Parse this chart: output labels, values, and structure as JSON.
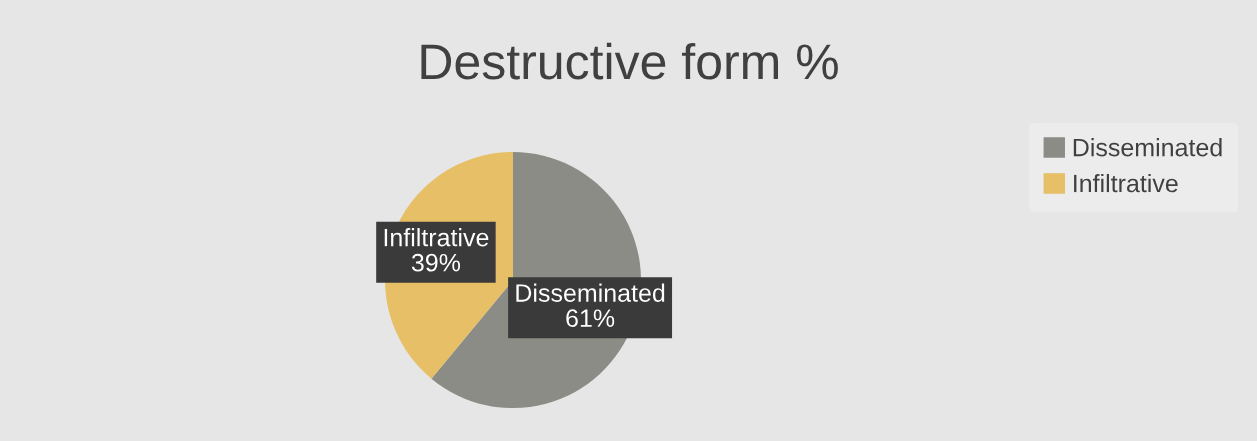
{
  "chart_data": {
    "type": "pie",
    "title": "Destructive form %",
    "categories": [
      "Disseminated",
      "Infiltrative"
    ],
    "values": [
      61,
      39
    ],
    "colors": [
      "#8c8c86",
      "#e6bf66"
    ],
    "value_labels": [
      "Disseminated\n61%",
      "Infiltrative\n39%"
    ],
    "legend": "right"
  }
}
